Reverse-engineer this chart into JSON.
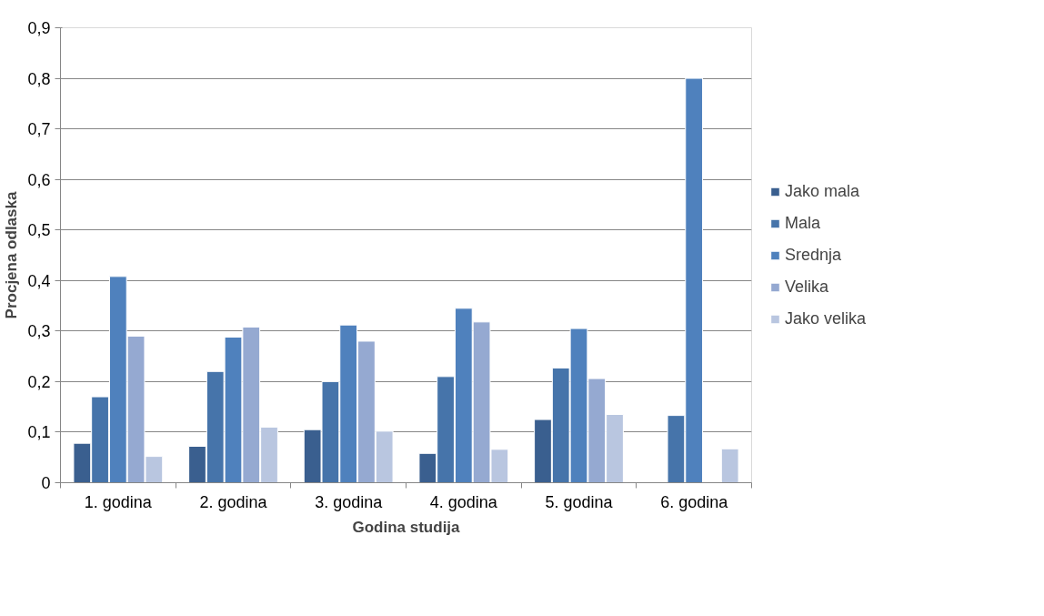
{
  "chart_data": {
    "type": "bar",
    "xlabel": "Godina studija",
    "ylabel": "Procjena odlaska",
    "categories": [
      "1. godina",
      "2. godina",
      "3. godina",
      "4. godina",
      "5. godina",
      "6. godina"
    ],
    "series": [
      {
        "name": "Jako mala",
        "color": "#3a5f8f",
        "values": [
          0.078,
          0.072,
          0.105,
          0.058,
          0.125,
          null
        ]
      },
      {
        "name": "Mala",
        "color": "#4674aa",
        "values": [
          0.17,
          0.22,
          0.2,
          0.21,
          0.227,
          0.133
        ]
      },
      {
        "name": "Srednja",
        "color": "#4f81bd",
        "values": [
          0.408,
          0.288,
          0.312,
          0.345,
          0.305,
          0.8
        ]
      },
      {
        "name": "Velika",
        "color": "#95a9d1",
        "values": [
          0.29,
          0.308,
          0.28,
          0.318,
          0.206,
          null
        ]
      },
      {
        "name": "Jako velika",
        "color": "#b9c6e0",
        "values": [
          0.052,
          0.11,
          0.102,
          0.066,
          0.135,
          0.067
        ]
      }
    ],
    "ylim": [
      0,
      0.9
    ],
    "yticks": [
      0,
      {
        "value": 0.1,
        "label": "0,1"
      },
      {
        "value": 0.2,
        "label": "0,2"
      },
      {
        "value": 0.3,
        "label": "0,3"
      },
      {
        "value": 0.4,
        "label": "0,4"
      },
      {
        "value": 0.5,
        "label": "0,5"
      },
      {
        "value": 0.6,
        "label": "0,6"
      },
      {
        "value": 0.7,
        "label": "0,7"
      },
      {
        "value": 0.8,
        "label": "0,8"
      },
      {
        "value": 0.9,
        "label": "0,9"
      }
    ],
    "grid": "y",
    "legend": "right"
  }
}
